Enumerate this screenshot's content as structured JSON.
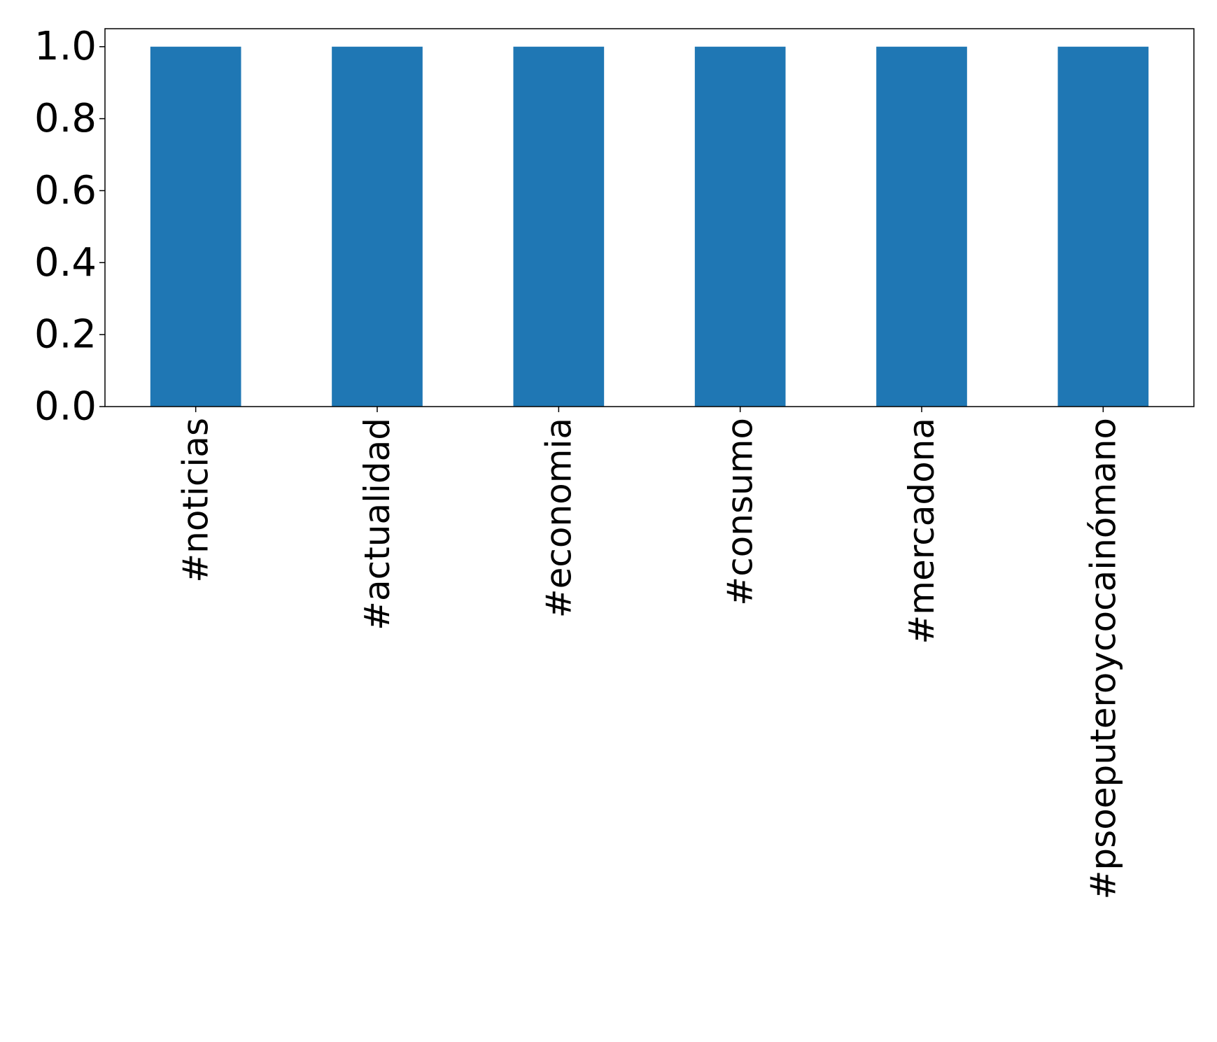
{
  "chart_data": {
    "type": "bar",
    "categories": [
      "#noticias",
      "#actualidad",
      "#economia",
      "#consumo",
      "#mercadona",
      "#psoeputeroycocainómano"
    ],
    "values": [
      1,
      1,
      1,
      1,
      1,
      1
    ],
    "ylim": [
      0,
      1.05
    ],
    "yticks": [
      "0.0",
      "0.2",
      "0.4",
      "0.6",
      "0.8",
      "1.0"
    ],
    "title": "",
    "xlabel": "",
    "ylabel": "",
    "legend": "none",
    "grid": false,
    "bar_color": "#1f77b4"
  }
}
